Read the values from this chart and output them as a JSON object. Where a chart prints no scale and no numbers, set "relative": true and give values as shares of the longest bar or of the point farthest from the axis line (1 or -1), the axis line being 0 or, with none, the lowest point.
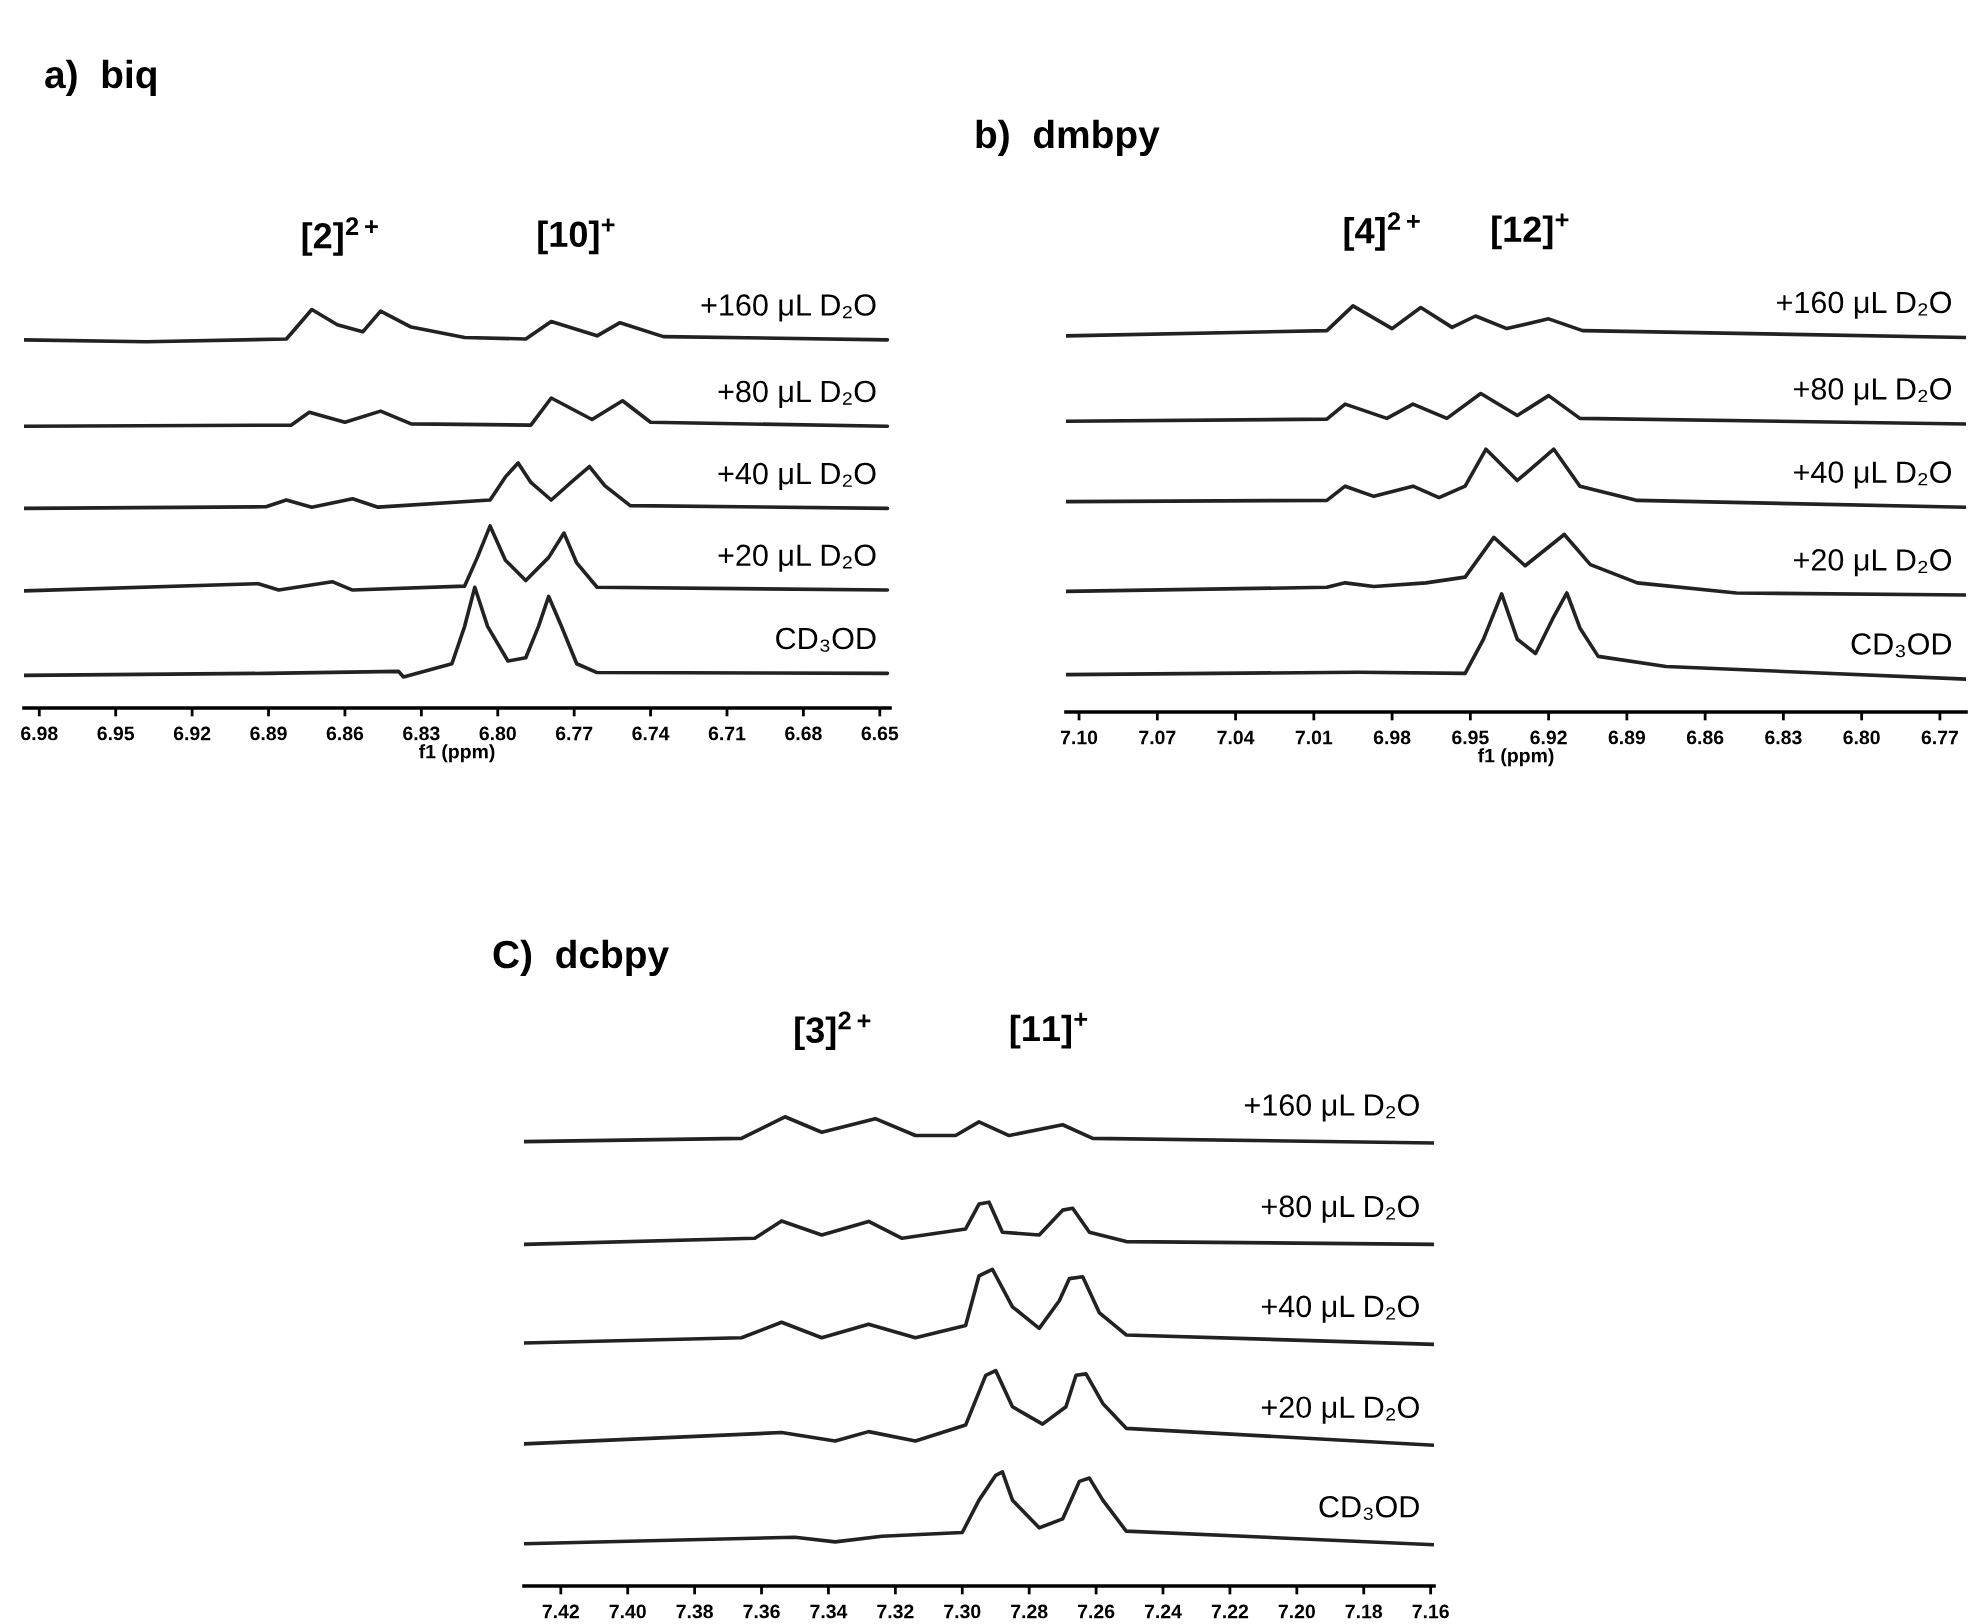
{
  "chart_data": [
    {
      "type": "line",
      "title": "a)  biq",
      "xlabel": "f1 (ppm)",
      "relative": true,
      "xlim": [
        6.986,
        6.646
      ],
      "xticks": [
        6.98,
        6.95,
        6.92,
        6.89,
        6.86,
        6.83,
        {
          "value": 6.8,
          "label": "6.80"
        },
        6.77,
        6.74,
        6.71,
        6.68,
        6.65
      ],
      "annotations": [
        "[2]$^{2+}$",
        "[10]$^{+}$"
      ],
      "series": [
        {
          "name": "CD₃OD",
          "color": "#222222",
          "x": [
            6.986,
            6.891,
            6.839,
            6.837,
            6.818,
            6.813,
            6.809,
            6.804,
            6.796,
            6.789,
            6.784,
            6.78,
            6.775,
            6.769,
            6.761,
            6.647
          ],
          "values": [
            0.082,
            0.087,
            0.092,
            0.078,
            0.111,
            0.205,
            0.303,
            0.205,
            0.118,
            0.126,
            0.205,
            0.28,
            0.205,
            0.111,
            0.089,
            0.087
          ]
        },
        {
          "name": "+20 μL D₂O",
          "color": "#222222",
          "x": [
            6.986,
            6.894,
            6.886,
            6.865,
            6.857,
            6.813,
            6.808,
            6.803,
            6.797,
            6.789,
            6.78,
            6.774,
            6.769,
            6.761,
            6.647
          ],
          "values": [
            0.294,
            0.312,
            0.296,
            0.317,
            0.296,
            0.306,
            0.378,
            0.457,
            0.371,
            0.32,
            0.378,
            0.439,
            0.364,
            0.303,
            0.296
          ]
        },
        {
          "name": "+40 μL D₂O",
          "color": "#222222",
          "x": [
            6.986,
            6.891,
            6.883,
            6.873,
            6.857,
            6.847,
            6.803,
            6.797,
            6.792,
            6.787,
            6.779,
            6.77,
            6.764,
            6.758,
            6.748,
            6.647
          ],
          "values": [
            0.501,
            0.505,
            0.522,
            0.504,
            0.525,
            0.504,
            0.522,
            0.58,
            0.615,
            0.566,
            0.522,
            0.573,
            0.606,
            0.558,
            0.508,
            0.501
          ]
        },
        {
          "name": "+80 μL D₂O",
          "color": "#222222",
          "x": [
            6.986,
            6.881,
            6.874,
            6.86,
            6.846,
            6.834,
            6.787,
            6.779,
            6.763,
            6.751,
            6.74,
            6.647
          ],
          "values": [
            0.707,
            0.71,
            0.742,
            0.717,
            0.745,
            0.713,
            0.71,
            0.778,
            0.724,
            0.771,
            0.717,
            0.707
          ]
        },
        {
          "name": "+160 μL D₂O",
          "color": "#222222",
          "x": [
            6.986,
            6.938,
            6.883,
            6.88,
            6.873,
            6.863,
            6.853,
            6.846,
            6.834,
            6.813,
            6.789,
            6.779,
            6.761,
            6.752,
            6.735,
            6.647
          ],
          "values": [
            0.924,
            0.919,
            0.926,
            0.948,
            1.0,
            0.962,
            0.944,
            0.996,
            0.956,
            0.93,
            0.926,
            0.97,
            0.934,
            0.967,
            0.932,
            0.924
          ]
        }
      ]
    },
    {
      "type": "line",
      "title": "b)  dmbpy",
      "xlabel": "f1 (ppm)",
      "relative": true,
      "xlim": [
        7.105,
        6.76
      ],
      "xticks": [
        {
          "value": 7.1,
          "label": "7.10"
        },
        7.07,
        7.04,
        7.01,
        6.98,
        6.95,
        6.92,
        6.89,
        6.86,
        6.83,
        {
          "value": 6.8,
          "label": "6.80"
        },
        6.77
      ],
      "annotations": [
        "[4]$^{2+}$",
        "[12]$^{+}$"
      ],
      "series": [
        {
          "name": "CD₃OD",
          "color": "#222222",
          "x": [
            7.105,
            6.993,
            6.952,
            6.945,
            6.938,
            6.932,
            6.925,
            6.918,
            6.913,
            6.908,
            6.901,
            6.875,
            6.76
          ],
          "values": [
            0.092,
            0.098,
            0.095,
            0.179,
            0.291,
            0.179,
            0.144,
            0.235,
            0.293,
            0.207,
            0.137,
            0.112,
            0.081
          ]
        },
        {
          "name": "+20 μL D₂O",
          "color": "#222222",
          "x": [
            7.105,
            7.005,
            6.998,
            6.987,
            6.967,
            6.952,
            6.941,
            6.929,
            6.914,
            6.904,
            6.886,
            6.848,
            6.76
          ],
          "values": [
            0.297,
            0.307,
            0.318,
            0.309,
            0.318,
            0.332,
            0.43,
            0.36,
            0.437,
            0.363,
            0.318,
            0.293,
            0.288
          ]
        },
        {
          "name": "+40 μL D₂O",
          "color": "#222222",
          "x": [
            7.105,
            7.005,
            6.998,
            6.987,
            6.972,
            6.962,
            6.952,
            6.944,
            6.932,
            6.918,
            6.908,
            6.886,
            6.76
          ],
          "values": [
            0.518,
            0.521,
            0.556,
            0.531,
            0.556,
            0.528,
            0.556,
            0.647,
            0.57,
            0.647,
            0.556,
            0.521,
            0.504
          ]
        },
        {
          "name": "+80 μL D₂O",
          "color": "#222222",
          "x": [
            7.105,
            7.005,
            6.998,
            6.982,
            6.972,
            6.959,
            6.946,
            6.932,
            6.92,
            6.908,
            6.76
          ],
          "values": [
            0.716,
            0.721,
            0.758,
            0.723,
            0.758,
            0.723,
            0.784,
            0.73,
            0.779,
            0.723,
            0.709
          ]
        },
        {
          "name": "+160 μL D₂O",
          "color": "#222222",
          "x": [
            7.105,
            7.005,
            6.995,
            6.98,
            6.969,
            6.957,
            6.948,
            6.936,
            6.92,
            6.907,
            6.76
          ],
          "values": [
            0.926,
            0.939,
            1.0,
            0.944,
            0.996,
            0.947,
            0.975,
            0.944,
            0.968,
            0.939,
            0.922
          ]
        }
      ]
    },
    {
      "type": "line",
      "title": "C)  dcbpy",
      "relative": true,
      "xlim": [
        7.431,
        7.159
      ],
      "xticks": [
        7.42,
        {
          "value": 7.4,
          "label": "7.40"
        },
        7.38,
        7.36,
        7.34,
        7.32,
        {
          "value": 7.3,
          "label": "7.30"
        },
        7.28,
        7.26,
        7.24,
        7.22,
        {
          "value": 7.2,
          "label": "7.20"
        },
        7.18,
        7.16
      ],
      "annotations": [
        "[3]$^{2+}$",
        "[11]$^{+}$"
      ],
      "series": [
        {
          "name": "CD₃OD",
          "color": "#222222",
          "x": [
            7.431,
            7.35,
            7.338,
            7.324,
            7.3,
            7.295,
            7.29,
            7.288,
            7.285,
            7.277,
            7.27,
            7.265,
            7.262,
            7.258,
            7.251,
            7.159
          ],
          "values": [
            0.09,
            0.104,
            0.094,
            0.106,
            0.114,
            0.183,
            0.236,
            0.243,
            0.183,
            0.124,
            0.143,
            0.223,
            0.23,
            0.183,
            0.117,
            0.088
          ]
        },
        {
          "name": "+20 μL D₂O",
          "color": "#222222",
          "x": [
            7.431,
            7.354,
            7.338,
            7.328,
            7.314,
            7.299,
            7.293,
            7.29,
            7.285,
            7.276,
            7.269,
            7.266,
            7.263,
            7.258,
            7.251,
            7.159
          ],
          "values": [
            0.303,
            0.327,
            0.309,
            0.329,
            0.309,
            0.343,
            0.449,
            0.459,
            0.382,
            0.345,
            0.382,
            0.449,
            0.452,
            0.389,
            0.336,
            0.3
          ]
        },
        {
          "name": "+40 μL D₂O",
          "color": "#222222",
          "x": [
            7.431,
            7.366,
            7.354,
            7.342,
            7.328,
            7.314,
            7.299,
            7.295,
            7.291,
            7.285,
            7.277,
            7.271,
            7.268,
            7.264,
            7.259,
            7.251,
            7.159
          ],
          "values": [
            0.518,
            0.529,
            0.562,
            0.529,
            0.558,
            0.529,
            0.555,
            0.661,
            0.675,
            0.595,
            0.549,
            0.608,
            0.655,
            0.659,
            0.582,
            0.535,
            0.515
          ]
        },
        {
          "name": "+80 μL D₂O",
          "color": "#222222",
          "x": [
            7.431,
            7.362,
            7.354,
            7.342,
            7.328,
            7.318,
            7.299,
            7.295,
            7.292,
            7.288,
            7.277,
            7.27,
            7.267,
            7.262,
            7.251,
            7.159
          ],
          "values": [
            0.728,
            0.741,
            0.778,
            0.748,
            0.777,
            0.741,
            0.761,
            0.814,
            0.818,
            0.754,
            0.748,
            0.801,
            0.805,
            0.754,
            0.734,
            0.728
          ]
        },
        {
          "name": "+160 μL D₂O",
          "color": "#222222",
          "x": [
            7.431,
            7.366,
            7.353,
            7.342,
            7.326,
            7.314,
            7.302,
            7.295,
            7.286,
            7.27,
            7.261,
            7.159
          ],
          "values": [
            0.947,
            0.954,
            1.0,
            0.967,
            0.996,
            0.96,
            0.96,
            0.989,
            0.96,
            0.983,
            0.954,
            0.944
          ]
        }
      ]
    }
  ]
}
